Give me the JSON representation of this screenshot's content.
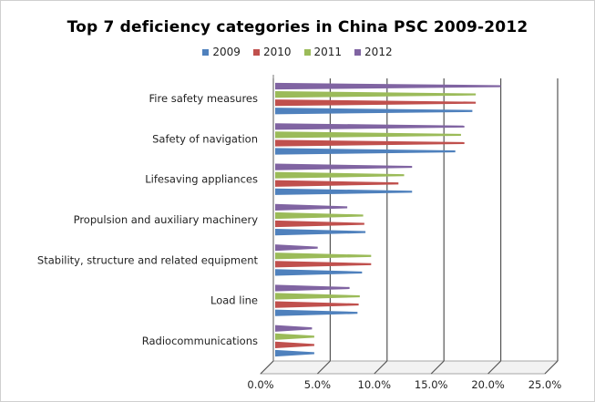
{
  "chart_data": {
    "type": "bar",
    "orientation": "horizontal",
    "title": "Top 7 deficiency categories in China PSC  2009-2012",
    "categories": [
      "Fire safety measures",
      "Safety of navigation",
      "Lifesaving appliances",
      "Propulsion and auxiliary machinery",
      "Stability, structure and related equipment",
      "Load line",
      "Radiocommunications"
    ],
    "series": [
      {
        "name": "2012",
        "color": "#8064a2",
        "values": [
          20.0,
          16.8,
          12.2,
          6.5,
          3.9,
          6.7,
          3.4
        ]
      },
      {
        "name": "2011",
        "color": "#9bbb59",
        "values": [
          17.8,
          16.5,
          11.5,
          7.9,
          8.6,
          7.6,
          3.6
        ]
      },
      {
        "name": "2010",
        "color": "#c0504d",
        "values": [
          17.8,
          16.8,
          11.0,
          8.0,
          8.6,
          7.5,
          3.6
        ]
      },
      {
        "name": "2009",
        "color": "#4f81bd",
        "values": [
          17.5,
          16.0,
          12.2,
          8.1,
          7.8,
          7.4,
          3.6
        ]
      }
    ],
    "xlim": [
      0,
      25
    ],
    "xticks": [
      "0.0%",
      "5.0%",
      "10.0%",
      "15.0%",
      "20.0%",
      "25.0%"
    ],
    "legend_position": "top",
    "grid": true
  }
}
